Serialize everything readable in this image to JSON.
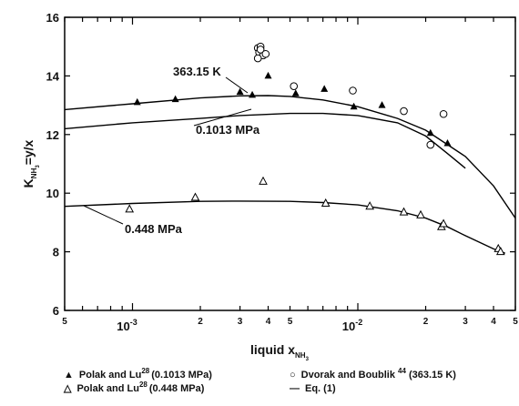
{
  "chart_data": {
    "type": "scatter",
    "x_scale": "log",
    "xlim": [
      0.0005,
      0.05
    ],
    "ylim": [
      6,
      16
    ],
    "y_ticks": [
      6,
      8,
      10,
      12,
      14,
      16
    ],
    "x_major_ticks": [
      {
        "value": 0.001,
        "mantissa": "10",
        "exponent": "-3"
      },
      {
        "value": 0.01,
        "mantissa": "10",
        "exponent": "-2"
      }
    ],
    "x_minor_labels": [
      {
        "value": 0.0005,
        "label": "5"
      },
      {
        "value": 0.002,
        "label": "2"
      },
      {
        "value": 0.003,
        "label": "3"
      },
      {
        "value": 0.004,
        "label": "4"
      },
      {
        "value": 0.005,
        "label": "5"
      },
      {
        "value": 0.02,
        "label": "2"
      },
      {
        "value": 0.03,
        "label": "3"
      },
      {
        "value": 0.04,
        "label": "4"
      },
      {
        "value": 0.05,
        "label": "5"
      }
    ],
    "xlabel": {
      "text": "liquid x",
      "sub": "NH",
      "sub2": "3"
    },
    "ylabel": {
      "k": "K",
      "k_sub": "NH",
      "k_sub2": "3",
      "rest": "=y/x"
    },
    "series": [
      {
        "name": "Polak and Lu",
        "ref": "28",
        "condition": "(0.1013 MPa)",
        "marker": "filled-triangle",
        "x": [
          0.00105,
          0.00155,
          0.003,
          0.0034,
          0.004,
          0.0053,
          0.0071,
          0.0096,
          0.0128,
          0.021,
          0.025
        ],
        "y": [
          13.1,
          13.2,
          13.45,
          13.35,
          14.0,
          13.4,
          13.55,
          12.95,
          13.0,
          12.05,
          11.7
        ]
      },
      {
        "name": "Polak and Lu",
        "ref": "28",
        "condition": "(0.448 MPa)",
        "marker": "open-triangle",
        "x": [
          0.00097,
          0.0019,
          0.0038,
          0.0072,
          0.0113,
          0.016,
          0.019,
          0.0235,
          0.024,
          0.042,
          0.043
        ],
        "y": [
          9.45,
          9.85,
          10.4,
          9.65,
          9.55,
          9.35,
          9.25,
          8.85,
          8.95,
          8.1,
          8.0
        ]
      },
      {
        "name": "Dvorak and Boublik",
        "ref": "44",
        "condition": "(363.15 K)",
        "marker": "open-circle",
        "x": [
          0.0036,
          0.00365,
          0.0037,
          0.0038,
          0.0036,
          0.0037,
          0.0039,
          0.0052,
          0.0095,
          0.016,
          0.021,
          0.024
        ],
        "y": [
          14.95,
          14.8,
          15.0,
          14.7,
          14.6,
          14.9,
          14.75,
          13.65,
          13.5,
          12.8,
          11.65,
          12.7
        ]
      },
      {
        "name": "Eq. (1) 363.15 K",
        "marker": "line",
        "x": [
          0.0005,
          0.001,
          0.002,
          0.003,
          0.004,
          0.005,
          0.007,
          0.01,
          0.015,
          0.02,
          0.03,
          0.04,
          0.05
        ],
        "y": [
          12.85,
          13.05,
          13.25,
          13.32,
          13.33,
          13.3,
          13.18,
          12.95,
          12.55,
          12.15,
          11.25,
          10.25,
          9.15
        ]
      },
      {
        "name": "Eq. (1) 0.1013 MPa",
        "marker": "line",
        "x": [
          0.0005,
          0.001,
          0.002,
          0.003,
          0.005,
          0.007,
          0.01,
          0.015,
          0.02,
          0.025,
          0.03
        ],
        "y": [
          12.2,
          12.4,
          12.55,
          12.65,
          12.72,
          12.72,
          12.65,
          12.4,
          11.95,
          11.35,
          10.85
        ]
      },
      {
        "name": "Eq. (1) 0.448 MPa",
        "marker": "line",
        "x": [
          0.0005,
          0.001,
          0.002,
          0.003,
          0.005,
          0.007,
          0.01,
          0.015,
          0.02,
          0.025,
          0.03,
          0.04,
          0.045
        ],
        "y": [
          9.55,
          9.65,
          9.72,
          9.73,
          9.72,
          9.68,
          9.6,
          9.4,
          9.15,
          8.85,
          8.55,
          8.1,
          7.95
        ]
      }
    ],
    "annotations": [
      {
        "text": "363.15 K",
        "target": [
          0.0028,
          13.35
        ]
      },
      {
        "text": "0.1013 MPa",
        "target": [
          0.0039,
          12.7
        ]
      },
      {
        "text": "0.448 MPa",
        "target": [
          0.00065,
          9.55
        ]
      }
    ],
    "legend": {
      "placement": "bottom",
      "entries": [
        {
          "symbol": "▲",
          "name": "Polak and Lu",
          "ref": "28",
          "condition": "(0.1013 MPa)"
        },
        {
          "symbol": "○",
          "name": "Dvorak and Boublik ",
          "ref": "44",
          "condition": " (363.15 K)"
        },
        {
          "symbol": "△",
          "name": "Polak and Lu",
          "ref": "28",
          "condition": "(0.448 MPa)"
        },
        {
          "symbol": "—",
          "name": "Eq. (1)",
          "ref": "",
          "condition": ""
        }
      ]
    },
    "grid": false
  }
}
